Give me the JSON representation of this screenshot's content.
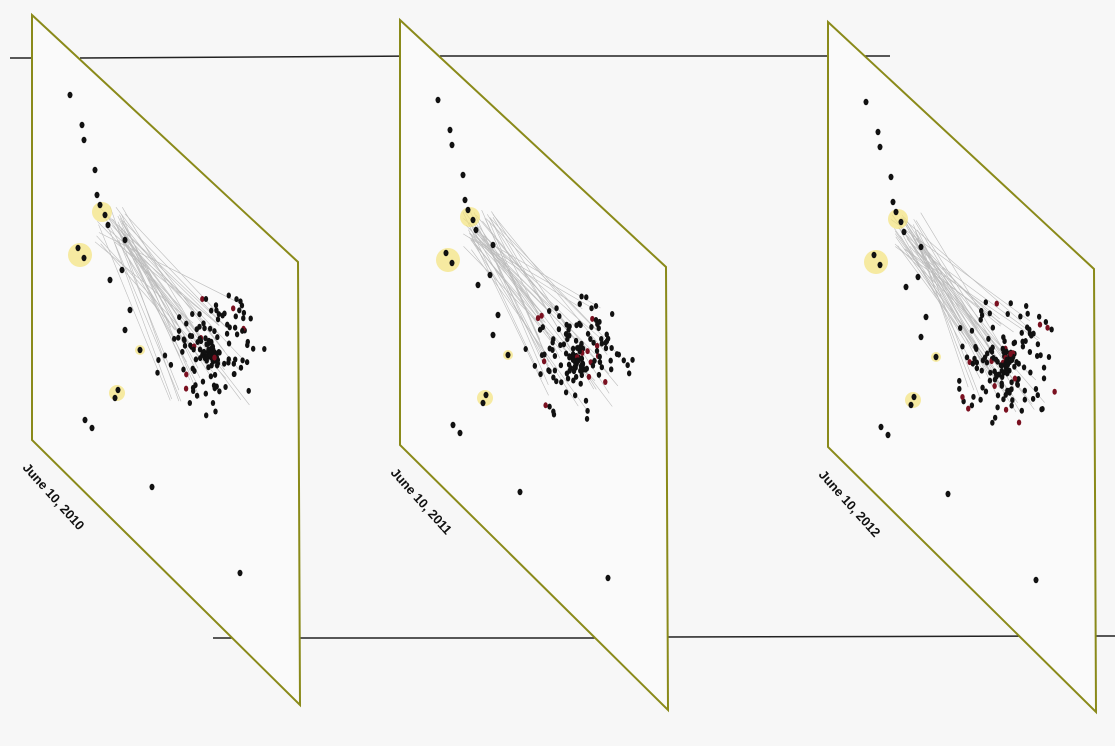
{
  "panels": [
    {
      "label": "June 10, 2010"
    },
    {
      "label": "June 10, 2011"
    },
    {
      "label": "June 10, 2012"
    }
  ]
}
